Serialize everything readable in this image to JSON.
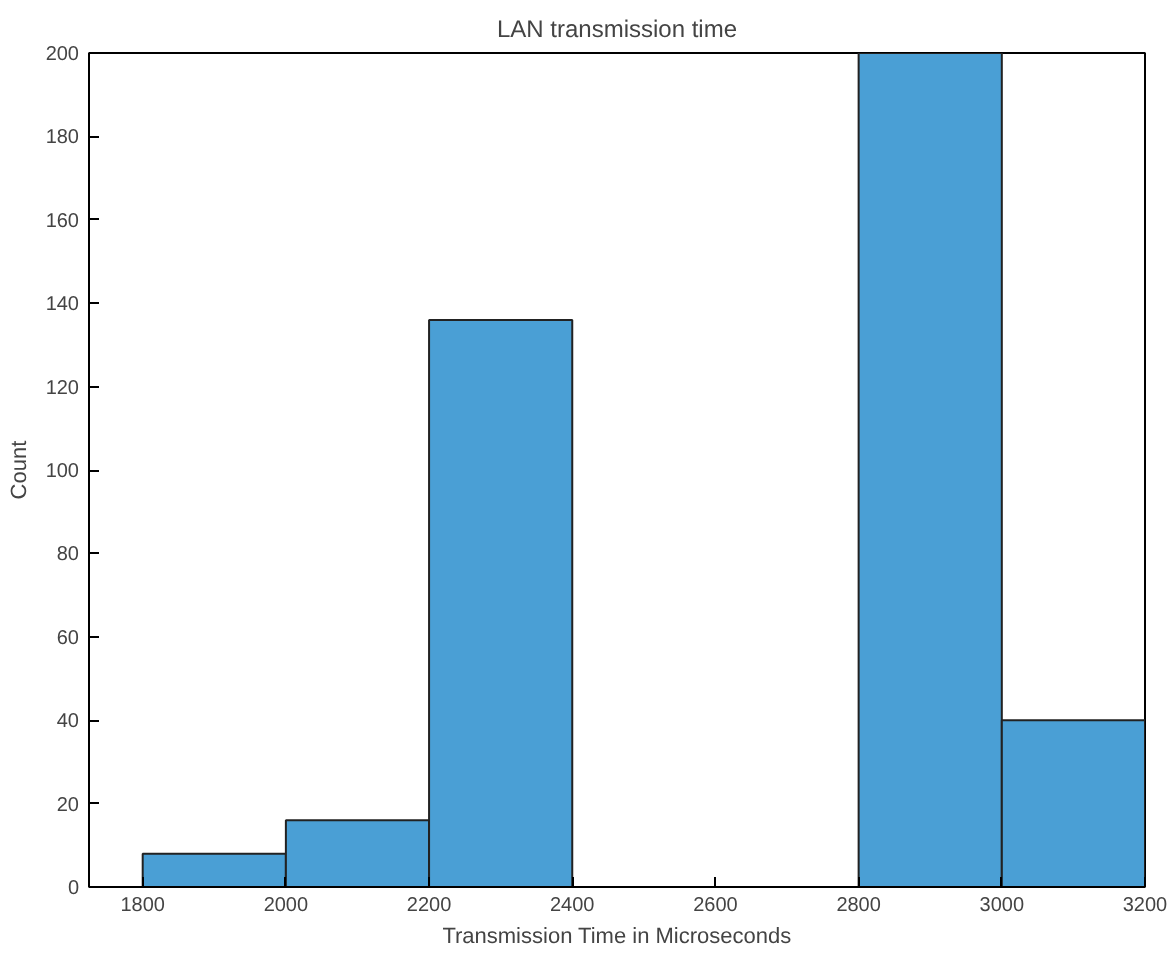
{
  "chart_data": {
    "type": "histogram",
    "title": "LAN transmission time",
    "xlabel": "Transmission Time in Microseconds",
    "ylabel": "Count",
    "bins": [
      1800,
      2000,
      2200,
      2400,
      2600,
      2800,
      3000,
      3200
    ],
    "values": [
      8,
      16,
      136,
      0,
      0,
      200,
      40
    ],
    "color": "#4a9fd5",
    "xlim": [
      1725,
      3200
    ],
    "xticks": [
      1800,
      2000,
      2200,
      2400,
      2600,
      2800,
      3000,
      3200
    ],
    "ylim": [
      0,
      200
    ],
    "yticks": [
      0,
      20,
      40,
      60,
      80,
      100,
      120,
      140,
      160,
      180,
      200
    ],
    "grid": false
  }
}
